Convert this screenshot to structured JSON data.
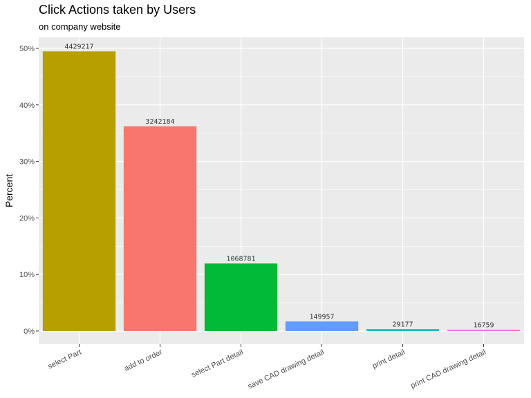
{
  "chart_data": {
    "type": "bar",
    "title": "Click Actions taken by Users",
    "subtitle": "on company website",
    "xlabel": "",
    "ylabel": "Percent",
    "ylim": [
      0,
      0.5
    ],
    "yticks": [
      0,
      0.1,
      0.2,
      0.3,
      0.4,
      0.5
    ],
    "ytick_labels": [
      "0%",
      "10%",
      "20%",
      "30%",
      "40%",
      "50%"
    ],
    "grid": true,
    "legend": "none",
    "categories": [
      "select Part",
      "add to order",
      "select Part detail",
      "save CAD drawing detail",
      "print detail",
      "print CAD drawing detail"
    ],
    "values": [
      0.4947,
      0.3621,
      0.1194,
      0.0168,
      0.0033,
      0.0019
    ],
    "counts": [
      4429217,
      3242184,
      1068781,
      149957,
      29177,
      16759
    ],
    "count_labels": [
      "4429217",
      "3242184",
      "1068781",
      "149957",
      "29177",
      "16759"
    ],
    "colors": [
      "#B79F00",
      "#F8766D",
      "#00BA38",
      "#619CFF",
      "#00BFC4",
      "#F564E3"
    ],
    "panel_color": "#EBEBEB",
    "grid_color": "#FFFFFF"
  }
}
